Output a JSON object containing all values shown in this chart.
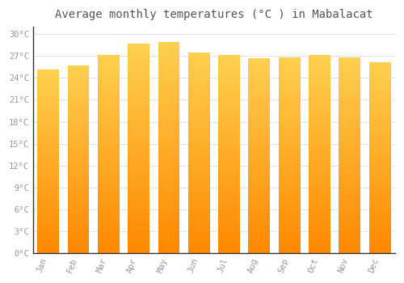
{
  "title": "Average monthly temperatures (°C ) in Mabalacat",
  "months": [
    "Jan",
    "Feb",
    "Mar",
    "Apr",
    "May",
    "Jun",
    "Jul",
    "Aug",
    "Sep",
    "Oct",
    "Nov",
    "Dec"
  ],
  "temperatures": [
    25.2,
    25.7,
    27.2,
    28.7,
    28.9,
    27.5,
    27.2,
    26.7,
    26.8,
    27.1,
    26.8,
    26.2
  ],
  "bar_color": "#FFA500",
  "bar_color_light": "#FFD966",
  "bar_color_dark": "#FF8C00",
  "background_color": "#FFFFFF",
  "grid_color": "#DDDDDD",
  "ylim": [
    0,
    31
  ],
  "yticks": [
    0,
    3,
    6,
    9,
    12,
    15,
    18,
    21,
    24,
    27,
    30
  ],
  "ytick_labels": [
    "0°C",
    "3°C",
    "6°C",
    "9°C",
    "12°C",
    "15°C",
    "18°C",
    "21°C",
    "24°C",
    "27°C",
    "30°C"
  ],
  "title_fontsize": 10,
  "tick_fontsize": 7.5,
  "tick_font_color": "#999999",
  "font_family": "monospace"
}
